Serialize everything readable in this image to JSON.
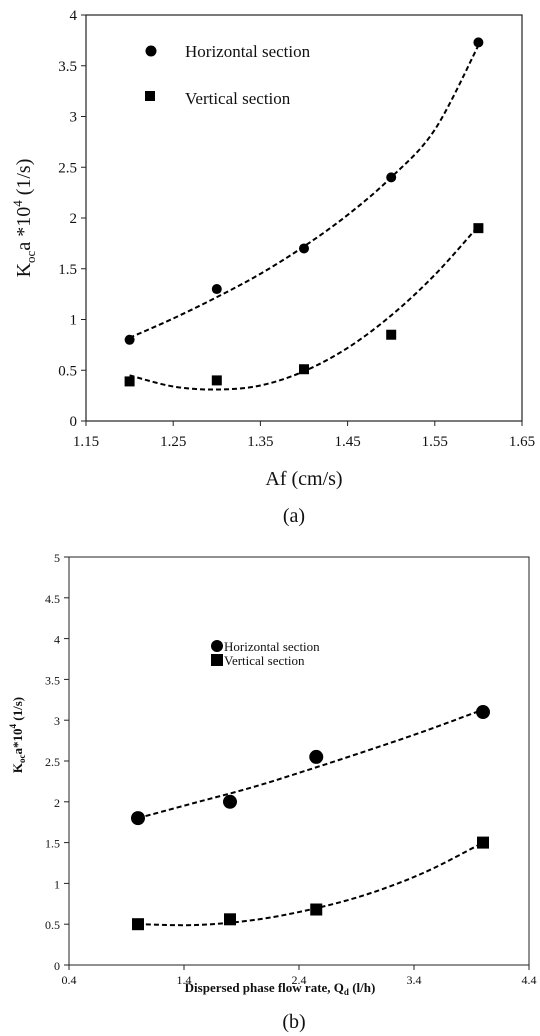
{
  "chart_data": [
    {
      "type": "scatter",
      "panel_label": "(a)",
      "xlabel": "Af (cm/s)",
      "ylabel_main": "K",
      "ylabel_sub": "oc",
      "ylabel_rest": "a *10",
      "ylabel_sup": "4",
      "ylabel_unit": " (1/s)",
      "xlim": [
        1.15,
        1.65
      ],
      "ylim": [
        0,
        4
      ],
      "x_ticks": [
        "1.15",
        "1.25",
        "1.35",
        "1.45",
        "1.55",
        "1.65"
      ],
      "y_ticks": [
        "0",
        "0.5",
        "1",
        "1.5",
        "2",
        "2.5",
        "3",
        "3.5",
        "4"
      ],
      "legend_position": "top-left",
      "grid": false,
      "series": [
        {
          "name": "Horizontal section",
          "marker": "circle",
          "x": [
            1.2,
            1.3,
            1.4,
            1.5,
            1.6
          ],
          "y": [
            0.8,
            1.3,
            1.7,
            2.4,
            3.73
          ],
          "trend_x": [
            1.2,
            1.25,
            1.3,
            1.35,
            1.4,
            1.45,
            1.5,
            1.55,
            1.6
          ],
          "trend_y": [
            0.82,
            1.01,
            1.22,
            1.45,
            1.72,
            2.03,
            2.4,
            2.87,
            3.7
          ]
        },
        {
          "name": "Vertical section",
          "marker": "square",
          "x": [
            1.2,
            1.3,
            1.4,
            1.5,
            1.6
          ],
          "y": [
            0.39,
            0.4,
            0.51,
            0.85,
            1.9
          ],
          "trend_x": [
            1.2,
            1.25,
            1.3,
            1.35,
            1.4,
            1.45,
            1.5,
            1.55,
            1.6
          ],
          "trend_y": [
            0.45,
            0.34,
            0.31,
            0.35,
            0.49,
            0.72,
            1.04,
            1.44,
            1.92
          ]
        }
      ]
    },
    {
      "type": "scatter",
      "panel_label": "(b)",
      "xlabel_main": "Dispersed phase flow rate, Q",
      "xlabel_sub": "d",
      "xlabel_unit": " (l/h)",
      "ylabel_main": "K",
      "ylabel_sub": "oc",
      "ylabel_rest": "a*10",
      "ylabel_sup": "4",
      "ylabel_unit": " (1/s)",
      "xlim": [
        0.4,
        4.4
      ],
      "ylim": [
        0,
        5
      ],
      "x_ticks": [
        "0.4",
        "1.4",
        "2.4",
        "3.4",
        "4.4"
      ],
      "y_ticks": [
        "0",
        "0.5",
        "1",
        "1.5",
        "2",
        "2.5",
        "3",
        "3.5",
        "4",
        "4.5",
        "5"
      ],
      "legend_position": "top-left",
      "grid": false,
      "series": [
        {
          "name": "Horizontal section",
          "marker": "circle",
          "x": [
            1.0,
            1.8,
            2.55,
            4.0
          ],
          "y": [
            1.8,
            2.0,
            2.55,
            3.1
          ],
          "trend_x": [
            1.0,
            1.5,
            2.0,
            2.5,
            3.0,
            3.5,
            4.0
          ],
          "trend_y": [
            1.8,
            1.99,
            2.18,
            2.4,
            2.63,
            2.87,
            3.13
          ]
        },
        {
          "name": "Vertical section",
          "marker": "square",
          "x": [
            1.0,
            1.8,
            2.55,
            4.0
          ],
          "y": [
            0.5,
            0.56,
            0.68,
            1.5
          ],
          "trend_x": [
            1.0,
            1.5,
            2.0,
            2.5,
            3.0,
            3.5,
            4.0
          ],
          "trend_y": [
            0.5,
            0.49,
            0.55,
            0.68,
            0.87,
            1.14,
            1.5
          ]
        }
      ]
    }
  ]
}
